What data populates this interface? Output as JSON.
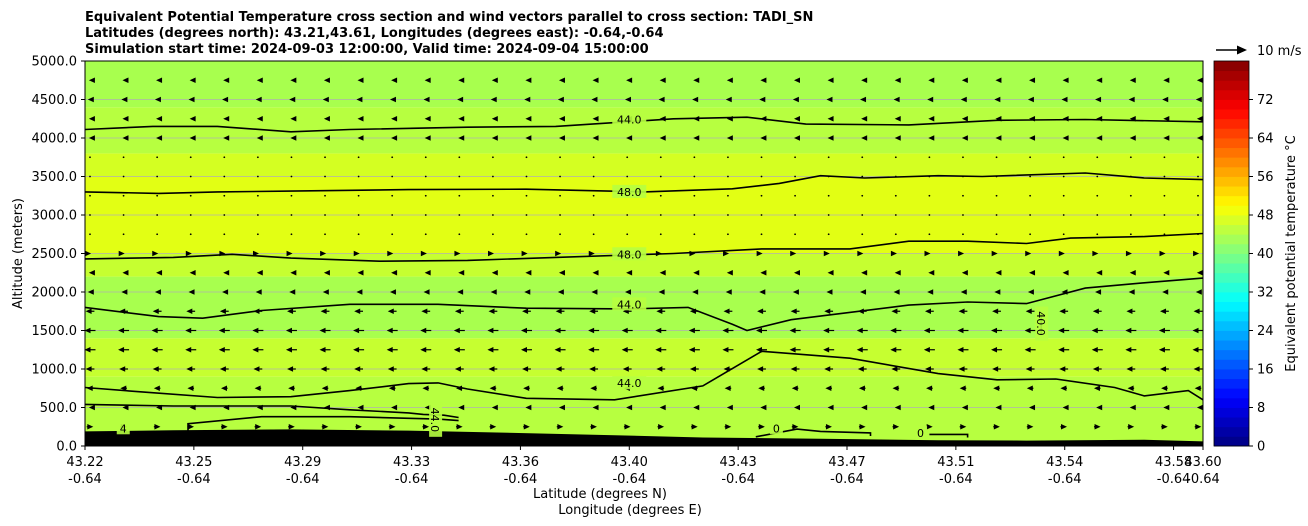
{
  "chart_data": {
    "type": "contour",
    "title_lines": [
      "Equivalent Potential Temperature cross section and wind vectors parallel to cross section: TADI_SN",
      "Latitudes (degrees north): 43.21,43.61, Longitudes (degrees east): -0.64,-0.64",
      "Simulation start time: 2024-09-03 12:00:00, Valid time: 2024-09-04 15:00:00"
    ],
    "ylabel": "Altitude (meters)",
    "xlabel_line1": "Latitude (degrees N)",
    "xlabel_line2": "Longitude (degrees E)",
    "xlim": [
      43.22,
      43.6
    ],
    "ylim": [
      0,
      5000
    ],
    "x_ticks": [
      {
        "lat": "43.22",
        "lon": "-0.64",
        "value": 43.22
      },
      {
        "lat": "43.25",
        "lon": "-0.64",
        "value": 43.257
      },
      {
        "lat": "43.29",
        "lon": "-0.64",
        "value": 43.294
      },
      {
        "lat": "43.33",
        "lon": "-0.64",
        "value": 43.331
      },
      {
        "lat": "43.36",
        "lon": "-0.64",
        "value": 43.368
      },
      {
        "lat": "43.40",
        "lon": "-0.64",
        "value": 43.405
      },
      {
        "lat": "43.43",
        "lon": "-0.64",
        "value": 43.442
      },
      {
        "lat": "43.47",
        "lon": "-0.64",
        "value": 43.479
      },
      {
        "lat": "43.51",
        "lon": "-0.64",
        "value": 43.516
      },
      {
        "lat": "43.54",
        "lon": "-0.64",
        "value": 43.553
      },
      {
        "lat": "43.58",
        "lon": "-0.64",
        "value": 43.59
      },
      {
        "lat": "43.60",
        "lon": "-0.64",
        "value": 43.6
      }
    ],
    "y_ticks": [
      {
        "label": "0.0",
        "value": 0
      },
      {
        "label": "500.0",
        "value": 500
      },
      {
        "label": "1000.0",
        "value": 1000
      },
      {
        "label": "1500.0",
        "value": 1500
      },
      {
        "label": "2000.0",
        "value": 2000
      },
      {
        "label": "2500.0",
        "value": 2500
      },
      {
        "label": "3000.0",
        "value": 3000
      },
      {
        "label": "3500.0",
        "value": 3500
      },
      {
        "label": "4000.0",
        "value": 4000
      },
      {
        "label": "4500.0",
        "value": 4500
      },
      {
        "label": "5000.0",
        "value": 5000
      }
    ],
    "grid": "horizontal",
    "colorbar": {
      "label": "Equivalent potential temperature $^\\circ$C",
      "label_display": "Equivalent potential temperature °C",
      "min": 0,
      "max": 80,
      "ticks": [
        "0",
        "8",
        "16",
        "24",
        "32",
        "40",
        "48",
        "56",
        "64",
        "72"
      ],
      "tick_values": [
        0,
        8,
        16,
        24,
        32,
        40,
        48,
        56,
        64,
        72
      ],
      "colormap": "jet"
    },
    "wind_key": {
      "label": "10 m/s",
      "value": 10
    },
    "fill_bands": [
      {
        "lower": 0,
        "upper": 900,
        "color": "#b7ff40"
      },
      {
        "lower": 900,
        "upper": 1400,
        "color": "#c6ff30"
      },
      {
        "lower": 1400,
        "upper": 2200,
        "color": "#a8ff4e"
      },
      {
        "lower": 2200,
        "upper": 2500,
        "color": "#c6ff30"
      },
      {
        "lower": 2500,
        "upper": 3500,
        "color": "#e2ff14"
      },
      {
        "lower": 3500,
        "upper": 3800,
        "color": "#d4ff22"
      },
      {
        "lower": 3800,
        "upper": 4400,
        "color": "#b7ff40"
      },
      {
        "lower": 4400,
        "upper": 5000,
        "color": "#a8ff4e"
      }
    ],
    "contour_labels": [
      {
        "text": "44.0",
        "x": 43.405,
        "y": 4240
      },
      {
        "text": "48.0",
        "x": 43.405,
        "y": 3300
      },
      {
        "text": "48.0",
        "x": 43.405,
        "y": 2490
      },
      {
        "text": "44.0",
        "x": 43.405,
        "y": 1840
      },
      {
        "text": "44.0",
        "x": 43.405,
        "y": 815
      },
      {
        "text": "40.0",
        "x": 43.545,
        "y": 1590
      },
      {
        "text": "44.0",
        "x": 43.339,
        "y": 340
      },
      {
        "text": "0",
        "x": 43.455,
        "y": 230
      },
      {
        "text": "0",
        "x": 43.504,
        "y": 170
      },
      {
        "text": "4",
        "x": 43.233,
        "y": 230
      }
    ],
    "contours": [
      {
        "level": 44,
        "points": [
          [
            43.22,
            4110
          ],
          [
            43.243,
            4150
          ],
          [
            43.265,
            4150
          ],
          [
            43.29,
            4080
          ],
          [
            43.31,
            4110
          ],
          [
            43.35,
            4140
          ],
          [
            43.38,
            4150
          ],
          [
            43.42,
            4250
          ],
          [
            43.445,
            4270
          ],
          [
            43.465,
            4180
          ],
          [
            43.5,
            4170
          ],
          [
            43.53,
            4230
          ],
          [
            43.56,
            4240
          ],
          [
            43.6,
            4210
          ]
        ]
      },
      {
        "level": 48,
        "points": [
          [
            43.22,
            3300
          ],
          [
            43.245,
            3280
          ],
          [
            43.265,
            3300
          ],
          [
            43.29,
            3310
          ],
          [
            43.33,
            3330
          ],
          [
            43.37,
            3335
          ],
          [
            43.41,
            3300
          ],
          [
            43.44,
            3340
          ],
          [
            43.456,
            3410
          ],
          [
            43.47,
            3510
          ],
          [
            43.485,
            3480
          ],
          [
            43.51,
            3510
          ],
          [
            43.525,
            3500
          ],
          [
            43.56,
            3545
          ],
          [
            43.58,
            3480
          ],
          [
            43.6,
            3460
          ]
        ]
      },
      {
        "level": 48,
        "points": [
          [
            43.22,
            2430
          ],
          [
            43.25,
            2450
          ],
          [
            43.27,
            2490
          ],
          [
            43.29,
            2440
          ],
          [
            43.32,
            2400
          ],
          [
            43.35,
            2410
          ],
          [
            43.38,
            2450
          ],
          [
            43.42,
            2500
          ],
          [
            43.45,
            2560
          ],
          [
            43.48,
            2560
          ],
          [
            43.5,
            2660
          ],
          [
            43.52,
            2660
          ],
          [
            43.54,
            2630
          ],
          [
            43.555,
            2700
          ],
          [
            43.58,
            2720
          ],
          [
            43.6,
            2760
          ]
        ]
      },
      {
        "level": 44,
        "points": [
          [
            43.22,
            1800
          ],
          [
            43.245,
            1680
          ],
          [
            43.26,
            1660
          ],
          [
            43.28,
            1760
          ],
          [
            43.31,
            1840
          ],
          [
            43.34,
            1840
          ],
          [
            43.37,
            1790
          ],
          [
            43.405,
            1780
          ],
          [
            43.425,
            1800
          ],
          [
            43.44,
            1580
          ],
          [
            43.445,
            1500
          ],
          [
            43.46,
            1640
          ],
          [
            43.5,
            1830
          ],
          [
            43.52,
            1870
          ],
          [
            43.54,
            1850
          ],
          [
            43.56,
            2050
          ],
          [
            43.58,
            2120
          ],
          [
            43.6,
            2180
          ]
        ]
      },
      {
        "level": 44,
        "points": [
          [
            43.22,
            760
          ],
          [
            43.24,
            700
          ],
          [
            43.265,
            630
          ],
          [
            43.29,
            640
          ],
          [
            43.31,
            720
          ],
          [
            43.33,
            810
          ],
          [
            43.34,
            820
          ],
          [
            43.35,
            740
          ],
          [
            43.37,
            620
          ],
          [
            43.4,
            600
          ],
          [
            43.43,
            780
          ],
          [
            43.45,
            1230
          ],
          [
            43.48,
            1140
          ],
          [
            43.51,
            940
          ],
          [
            43.53,
            860
          ],
          [
            43.55,
            870
          ],
          [
            43.57,
            760
          ],
          [
            43.58,
            650
          ],
          [
            43.595,
            720
          ],
          [
            43.6,
            600
          ]
        ]
      },
      {
        "level": 44,
        "points": [
          [
            43.22,
            540
          ],
          [
            43.25,
            520
          ],
          [
            43.29,
            520
          ],
          [
            43.31,
            470
          ],
          [
            43.33,
            430
          ],
          [
            43.335,
            410
          ],
          [
            43.342,
            400
          ],
          [
            43.347,
            370
          ]
        ]
      },
      {
        "level": 44,
        "points": [
          [
            43.255,
            200
          ],
          [
            43.255,
            290
          ],
          [
            43.28,
            380
          ],
          [
            43.31,
            380
          ],
          [
            43.33,
            360
          ],
          [
            43.34,
            350
          ],
          [
            43.347,
            330
          ]
        ]
      },
      {
        "level": 40,
        "points": [
          [
            43.545,
            1460
          ],
          [
            43.545,
            1720
          ]
        ]
      },
      {
        "level": 0,
        "points": [
          [
            43.448,
            120
          ],
          [
            43.462,
            220
          ],
          [
            43.47,
            190
          ],
          [
            43.487,
            170
          ],
          [
            43.487,
            130
          ]
        ]
      },
      {
        "level": 0,
        "points": [
          [
            43.507,
            150
          ],
          [
            43.52,
            150
          ],
          [
            43.52,
            110
          ]
        ]
      }
    ],
    "terrain": [
      [
        43.22,
        190
      ],
      [
        43.25,
        205
      ],
      [
        43.29,
        215
      ],
      [
        43.33,
        200
      ],
      [
        43.36,
        175
      ],
      [
        43.4,
        140
      ],
      [
        43.43,
        110
      ],
      [
        43.47,
        95
      ],
      [
        43.51,
        75
      ],
      [
        43.54,
        70
      ],
      [
        43.58,
        80
      ],
      [
        43.6,
        60
      ]
    ],
    "wind_rows": [
      {
        "altitude": 4750,
        "dx": -1
      },
      {
        "altitude": 4500,
        "dx": -2
      },
      {
        "altitude": 4250,
        "dx": -1
      },
      {
        "altitude": 4000,
        "dx": -1
      },
      {
        "altitude": 3750,
        "dx": 0
      },
      {
        "altitude": 3500,
        "dx": 0
      },
      {
        "altitude": 3250,
        "dx": 0
      },
      {
        "altitude": 3000,
        "dx": 0
      },
      {
        "altitude": 2750,
        "dx": 0
      },
      {
        "altitude": 2500,
        "dx": 1
      },
      {
        "altitude": 2250,
        "dx": -1
      },
      {
        "altitude": 2000,
        "dx": -2
      },
      {
        "altitude": 1750,
        "dx": -4
      },
      {
        "altitude": 1500,
        "dx": -5
      },
      {
        "altitude": 1250,
        "dx": -5
      },
      {
        "altitude": 1000,
        "dx": -4
      },
      {
        "altitude": 750,
        "dx": -3
      },
      {
        "altitude": 500,
        "dx": -1
      },
      {
        "altitude": 250,
        "dx": 3
      }
    ]
  }
}
